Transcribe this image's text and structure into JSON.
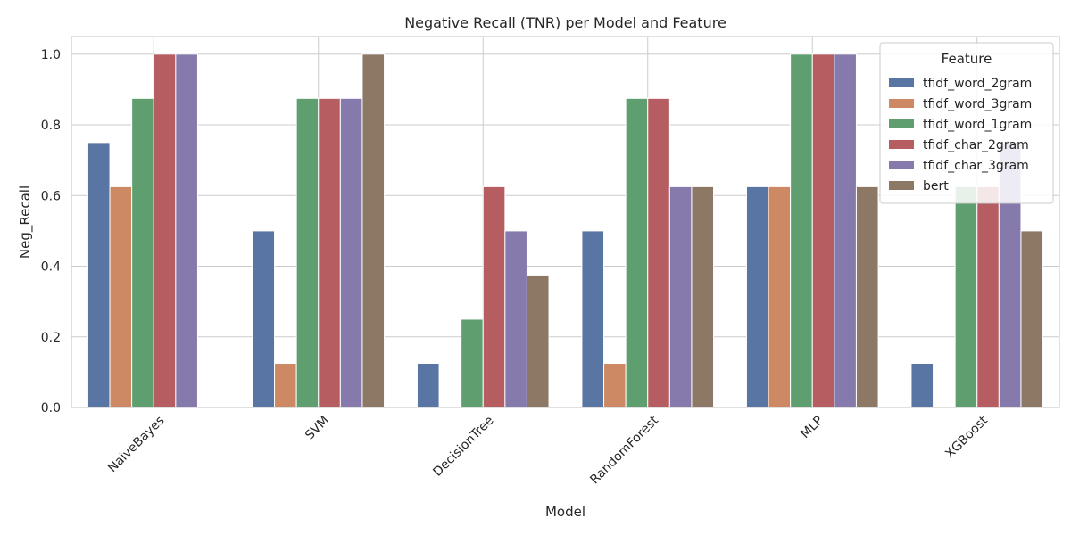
{
  "chart_data": {
    "type": "bar",
    "title": "Negative Recall (TNR) per Model and Feature",
    "xlabel": "Model",
    "ylabel": "Neg_Recall",
    "ylim": [
      0,
      1.05
    ],
    "yticks": [
      "0.0",
      "0.2",
      "0.4",
      "0.6",
      "0.8",
      "1.0"
    ],
    "grid": true,
    "legend": {
      "title": "Feature",
      "placement": "top-right"
    },
    "categories": [
      "NaiveBayes",
      "SVM",
      "DecisionTree",
      "RandomForest",
      "MLP",
      "XGBoost"
    ],
    "series": [
      {
        "name": "tfidf_word_2gram",
        "color": "#5875a4",
        "values": [
          0.75,
          0.5,
          0.125,
          0.5,
          0.625,
          0.125
        ]
      },
      {
        "name": "tfidf_word_3gram",
        "color": "#cc8963",
        "values": [
          0.625,
          0.125,
          0.0,
          0.125,
          0.625,
          0.0
        ]
      },
      {
        "name": "tfidf_word_1gram",
        "color": "#5f9e6e",
        "values": [
          0.875,
          0.875,
          0.25,
          0.875,
          1.0,
          0.625
        ]
      },
      {
        "name": "tfidf_char_2gram",
        "color": "#b55d60",
        "values": [
          1.0,
          0.875,
          0.625,
          0.875,
          1.0,
          0.625
        ]
      },
      {
        "name": "tfidf_char_3gram",
        "color": "#857aab",
        "values": [
          1.0,
          0.875,
          0.5,
          0.625,
          1.0,
          0.75
        ]
      },
      {
        "name": "bert",
        "color": "#8d7866",
        "values": [
          0.0,
          1.0,
          0.375,
          0.625,
          0.625,
          0.5
        ]
      }
    ]
  }
}
